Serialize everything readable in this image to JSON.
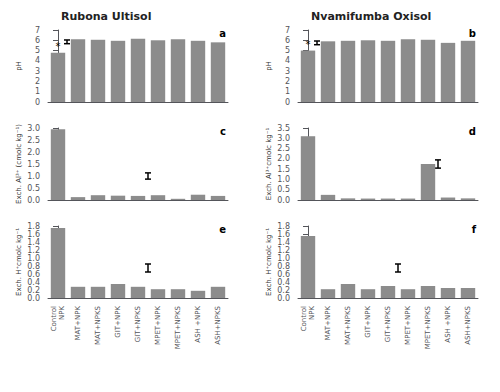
{
  "chart_data": [
    {
      "type": "bar",
      "title": "Rubona Ultisol",
      "panel_label": "a",
      "ylabel": "pH",
      "categories": [
        "Control\nNPK",
        "MAT+NPK",
        "MAT+NPKS",
        "GIT+NPK",
        "GIT+NPKS",
        "MPET+NPK",
        "MPET+NPKS",
        "ASH +NPK",
        "ASH+NPKS"
      ],
      "values": [
        4.8,
        6.1,
        6.05,
        5.95,
        6.15,
        6.0,
        6.1,
        5.95,
        5.8
      ],
      "color": "#8c8c8c",
      "ylim": [
        0,
        7
      ],
      "yticks": [
        0,
        1,
        2,
        3,
        4,
        5,
        6,
        7
      ],
      "grid": false,
      "tick_labels": "y",
      "annotations": [
        {
          "text": "*",
          "category": "Control\nNPK"
        }
      ],
      "lsd": {
        "x": 0.45,
        "y": 5.85,
        "half_height": 0.18
      }
    },
    {
      "type": "bar",
      "title": "Nvamifumba Oxisol",
      "panel_label": "b",
      "ylabel": "pH",
      "categories": [
        "Control\nNPK",
        "MAT+NPK",
        "MAT+NPKS",
        "GIT+NPK",
        "GIT+NPKS",
        "MPET+NPK",
        "MPET+NPKS",
        "ASH +NPK",
        "ASH+NPKS"
      ],
      "values": [
        5.0,
        5.9,
        5.95,
        6.0,
        5.95,
        6.1,
        6.05,
        5.75,
        5.95
      ],
      "color": "#8c8c8c",
      "ylim": [
        0,
        7
      ],
      "yticks": [
        0,
        1,
        2,
        3,
        4,
        5,
        6,
        7
      ],
      "grid": false,
      "tick_labels": "y",
      "annotations": [
        {
          "text": "*",
          "category": "Control\nNPK"
        }
      ],
      "lsd": {
        "x": 0.45,
        "y": 5.75,
        "half_height": 0.18
      }
    },
    {
      "type": "bar",
      "panel_label": "c",
      "ylabel": "Exch. Al³⁺ (cmolc kg⁻¹)",
      "categories": [
        "Control\nNPK",
        "MAT+NPK",
        "MAT+NPKS",
        "GIT+NPK",
        "GIT+NPKS",
        "MPET+NPK",
        "MPET+NPKS",
        "ASH +NPK",
        "ASH+NPKS"
      ],
      "values": [
        2.95,
        0.12,
        0.2,
        0.18,
        0.17,
        0.2,
        0.05,
        0.22,
        0.17
      ],
      "color": "#8c8c8c",
      "ylim": [
        0,
        3
      ],
      "yticks": [
        {
          "value": 0,
          "label": "0.0"
        },
        0.5,
        {
          "value": 1,
          "label": "1.0"
        },
        1.5,
        {
          "value": 2,
          "label": "2.0"
        },
        2.5,
        {
          "value": 3,
          "label": "3.0"
        }
      ],
      "grid": false,
      "tick_labels": "y",
      "lsd": {
        "x": 4.5,
        "y": 1.0,
        "half_height": 0.13
      }
    },
    {
      "type": "bar",
      "panel_label": "d",
      "ylabel": "Exch. Al³⁺cmolc kg⁻¹",
      "categories": [
        "Control\nNPK",
        "MAT+NPK",
        "MAT+NPKS",
        "GIT+NPK",
        "GIT+NPKS",
        "MPET+NPK",
        "MPET+NPKS",
        "ASH +NPK",
        "ASH+NPKS"
      ],
      "values": [
        3.1,
        0.25,
        0.08,
        0.07,
        0.07,
        0.07,
        1.75,
        0.12,
        0.08
      ],
      "color": "#8c8c8c",
      "ylim": [
        0,
        3.5
      ],
      "yticks": [
        {
          "value": 0,
          "label": "0.0"
        },
        0.5,
        {
          "value": 1,
          "label": "1.0"
        },
        1.5,
        {
          "value": 2,
          "label": "2.0"
        },
        2.5,
        {
          "value": 3,
          "label": "3.0"
        },
        3.5
      ],
      "grid": false,
      "tick_labels": "y",
      "lsd": {
        "x": 6.5,
        "y": 1.75,
        "half_height": 0.2
      }
    },
    {
      "type": "bar",
      "panel_label": "e",
      "ylabel": "Exch. H⁺cmolc kg⁻¹",
      "categories": [
        "Control\nNPK",
        "MAT+NPK",
        "MAT+NPKS",
        "GIT+NPK",
        "GIT+NPKS",
        "MPET+NPK",
        "MPET+NPKS",
        "ASH +NPK",
        "ASH+NPKS"
      ],
      "values": [
        1.75,
        0.28,
        0.28,
        0.35,
        0.28,
        0.22,
        0.22,
        0.18,
        0.28
      ],
      "color": "#8c8c8c",
      "ylim": [
        0,
        1.8
      ],
      "yticks": [
        {
          "value": 0,
          "label": "0.0"
        },
        0.2,
        0.4,
        0.6,
        0.8,
        {
          "value": 1,
          "label": "1.0"
        },
        1.2,
        1.4,
        1.6,
        1.8
      ],
      "grid": false,
      "lsd": {
        "x": 4.5,
        "y": 0.75,
        "half_height": 0.1
      }
    },
    {
      "type": "bar",
      "panel_label": "f",
      "ylabel": "Exch. H⁺cmolc kg⁻¹",
      "categories": [
        "Control\nNPK",
        "MAT+NPK",
        "MAT+NPKS",
        "GIT+NPK",
        "GIT+NPKS",
        "MPET+NPK",
        "MPET+NPKS",
        "ASH +NPK",
        "ASH+NPKS"
      ],
      "values": [
        1.55,
        0.22,
        0.35,
        0.22,
        0.3,
        0.22,
        0.3,
        0.25,
        0.25
      ],
      "color": "#8c8c8c",
      "ylim": [
        0,
        1.8
      ],
      "yticks": [
        {
          "value": 0,
          "label": "0.0"
        },
        0.2,
        0.4,
        0.6,
        0.8,
        {
          "value": 1,
          "label": "1.0"
        },
        1.2,
        1.4,
        1.6,
        1.8
      ],
      "grid": false,
      "lsd": {
        "x": 4.5,
        "y": 0.75,
        "half_height": 0.1
      }
    }
  ]
}
